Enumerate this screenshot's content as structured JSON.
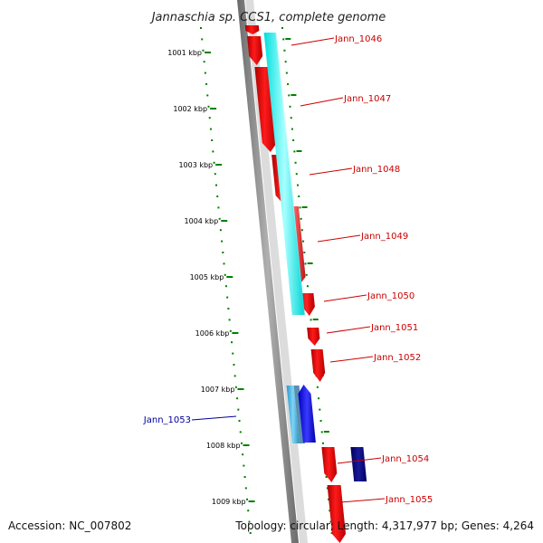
{
  "title": "Jannaschia sp. CCS1, complete genome",
  "accession": "Accession: NC_007802",
  "topology": "Topology: circular; Length: 4,317,977 bp; Genes: 4,264",
  "colors": {
    "forward_gene": "#ff0000",
    "forward_rna": "#00ffff",
    "reverse_gene": "#0000ff",
    "reverse_dark": "#000080",
    "reverse_light": "#33bbee",
    "backbone": "#808080",
    "tick": "#008000",
    "label_red": "#cc0000",
    "label_blue": "#000099"
  },
  "kbp_ticks": [
    {
      "label": "1001 kbp"
    },
    {
      "label": "1002 kbp"
    },
    {
      "label": "1003 kbp"
    },
    {
      "label": "1004 kbp"
    },
    {
      "label": "1005 kbp"
    },
    {
      "label": "1006 kbp"
    },
    {
      "label": "1007 kbp"
    },
    {
      "label": "1008 kbp"
    },
    {
      "label": "1009 kbp"
    }
  ],
  "genes": [
    {
      "label": "Jann_1046",
      "strand": "forward"
    },
    {
      "label": "Jann_1047",
      "strand": "forward"
    },
    {
      "label": "Jann_1048",
      "strand": "forward"
    },
    {
      "label": "Jann_1049",
      "strand": "forward"
    },
    {
      "label": "Jann_1050",
      "strand": "forward"
    },
    {
      "label": "Jann_1051",
      "strand": "forward"
    },
    {
      "label": "Jann_1052",
      "strand": "forward"
    },
    {
      "label": "Jann_1053",
      "strand": "reverse"
    },
    {
      "label": "Jann_1054",
      "strand": "forward"
    },
    {
      "label": "Jann_1055",
      "strand": "forward"
    }
  ]
}
